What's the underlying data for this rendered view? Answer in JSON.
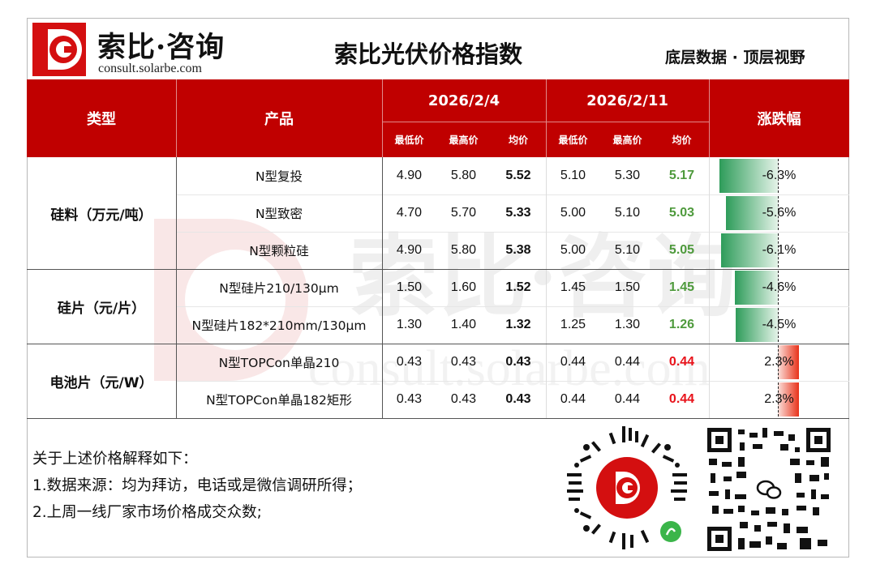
{
  "header": {
    "brand": "索比·咨询",
    "url": "consult.solarbe.com",
    "title": "索比光伏价格指数",
    "slogan": "底层数据 · 顶层视野"
  },
  "table": {
    "col_type": "类型",
    "col_product": "产品",
    "date1": "2026/2/4",
    "date2": "2026/2/11",
    "col_change": "涨跌幅",
    "sub": [
      "最低价",
      "最高价",
      "均价",
      "最低价",
      "最高价",
      "均价"
    ],
    "groups": [
      {
        "label": "硅料（万元/吨）"
      },
      {
        "label": "硅片（元/片）"
      },
      {
        "label": "电池片（元/W）"
      }
    ],
    "rows": [
      {
        "product": "N型复投",
        "v": [
          "4.90",
          "5.80",
          "5.52",
          "5.10",
          "5.30",
          "5.17"
        ],
        "change": "-6.3%",
        "pct": -6.3
      },
      {
        "product": "N型致密",
        "v": [
          "4.70",
          "5.70",
          "5.33",
          "5.00",
          "5.10",
          "5.03"
        ],
        "change": "-5.6%",
        "pct": -5.6
      },
      {
        "product": "N型颗粒硅",
        "v": [
          "4.90",
          "5.80",
          "5.38",
          "5.00",
          "5.10",
          "5.05"
        ],
        "change": "-6.1%",
        "pct": -6.1
      },
      {
        "product": "N型硅片210/130μm",
        "v": [
          "1.50",
          "1.60",
          "1.52",
          "1.45",
          "1.50",
          "1.45"
        ],
        "change": "-4.6%",
        "pct": -4.6
      },
      {
        "product": "N型硅片182*210mm/130μm",
        "v": [
          "1.30",
          "1.40",
          "1.32",
          "1.25",
          "1.30",
          "1.26"
        ],
        "change": "-4.5%",
        "pct": -4.5
      },
      {
        "product": "N型TOPCon单晶210",
        "v": [
          "0.43",
          "0.43",
          "0.43",
          "0.44",
          "0.44",
          "0.44"
        ],
        "change": "2.3%",
        "pct": 2.3
      },
      {
        "product": "N型TOPCon单晶182矩形",
        "v": [
          "0.43",
          "0.43",
          "0.43",
          "0.44",
          "0.44",
          "0.44"
        ],
        "change": "2.3%",
        "pct": 2.3
      }
    ]
  },
  "notes": {
    "heading": "关于上述价格解释如下：",
    "line1": "1.数据来源：均为拜访，电话或是微信调研所得；",
    "line2": "2.上周一线厂家市场价格成交众数;"
  },
  "colors": {
    "header_red": "#c00000",
    "down_green": "#4e9a3c",
    "up_red": "#e8121a",
    "bar_green": "#2e9c5a",
    "bar_red": "#e8321a"
  }
}
